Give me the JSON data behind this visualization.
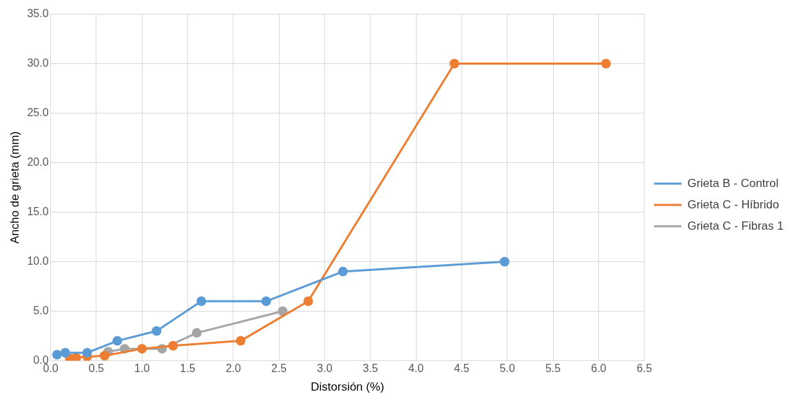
{
  "chart_data": {
    "type": "line",
    "xlabel": "Distorsión (%)",
    "ylabel": "Ancho de grieta (mm)",
    "xlim": [
      0,
      6.5
    ],
    "xticks": [
      {
        "value": 0,
        "label": "0.0"
      },
      {
        "value": 0.5,
        "label": "0.5"
      },
      {
        "value": 1,
        "label": "1.0"
      },
      {
        "value": 1.5,
        "label": "1.5"
      },
      {
        "value": 2,
        "label": "2.0"
      },
      {
        "value": 2.5,
        "label": "2.5"
      },
      {
        "value": 3,
        "label": "3.0"
      },
      {
        "value": 3.5,
        "label": "3.5"
      },
      {
        "value": 4,
        "label": "4.0"
      },
      {
        "value": 4.5,
        "label": "4.5"
      },
      {
        "value": 5,
        "label": "5.0"
      },
      {
        "value": 5.5,
        "label": "5.5"
      },
      {
        "value": 6,
        "label": "6.0"
      },
      {
        "value": 6.5,
        "label": "6.5"
      }
    ],
    "ylim": [
      0,
      35
    ],
    "yticks": [
      {
        "value": 0,
        "label": "0.0"
      },
      {
        "value": 5,
        "label": "5.0"
      },
      {
        "value": 10,
        "label": "10.0"
      },
      {
        "value": 15,
        "label": "15.0"
      },
      {
        "value": 20,
        "label": "20.0"
      },
      {
        "value": 25,
        "label": "25.0"
      },
      {
        "value": 30,
        "label": "30.0"
      },
      {
        "value": 35,
        "label": "35.0"
      }
    ],
    "grid": true,
    "legend": "right",
    "marker": "circle",
    "line_style": "solid",
    "series": [
      {
        "name": "Grieta B - Control",
        "color": "#5b9bd5",
        "x": [
          0.07,
          0.16,
          0.4,
          0.73,
          1.16,
          1.65,
          2.36,
          3.2,
          4.97
        ],
        "values": [
          0.6,
          0.8,
          0.8,
          2.0,
          3.0,
          6.0,
          6.0,
          9.0,
          10.0
        ]
      },
      {
        "name": "Grieta C - Híbrido",
        "color": "#ed7d31",
        "x": [
          0.21,
          0.28,
          0.4,
          0.59,
          1.0,
          1.34,
          2.08,
          2.82,
          4.42,
          6.08
        ],
        "values": [
          0.2,
          0.3,
          0.4,
          0.5,
          1.2,
          1.5,
          2.0,
          6.0,
          30.0,
          30.0
        ]
      },
      {
        "name": "Grieta C - Fibras 1",
        "color": "#a5a5a5",
        "x": [
          0.63,
          0.81,
          1.22,
          1.6,
          2.54
        ],
        "values": [
          0.9,
          1.2,
          1.2,
          2.8,
          5.0
        ]
      }
    ]
  }
}
